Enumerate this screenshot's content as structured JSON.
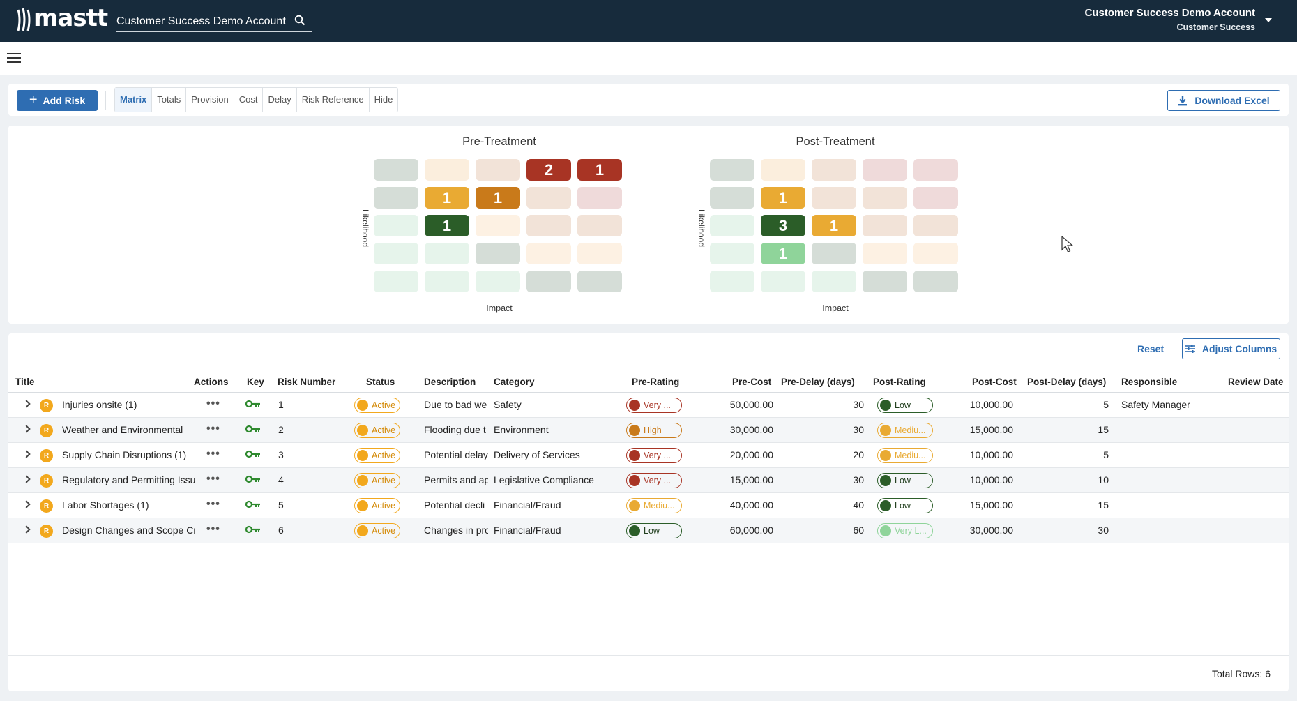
{
  "app": {
    "logo_text": "mastt",
    "account_search_value": "Customer Success Demo Account",
    "user_name": "Customer Success Demo Account",
    "user_role": "Customer Success"
  },
  "toolbar": {
    "add_label": "Add Risk",
    "tabs": [
      {
        "label": "Matrix",
        "active": true
      },
      {
        "label": "Totals",
        "active": false
      },
      {
        "label": "Provision",
        "active": false
      },
      {
        "label": "Cost",
        "active": false
      },
      {
        "label": "Delay",
        "active": false
      },
      {
        "label": "Risk Reference",
        "active": false
      },
      {
        "label": "Hide",
        "active": false
      }
    ],
    "download_label": "Download Excel"
  },
  "matrices": [
    {
      "title": "Pre-Treatment",
      "ylabel": "Likelihood",
      "xlabel": "Impact",
      "cells": [
        [
          {
            "c": "#d5ddd7",
            "v": ""
          },
          {
            "c": "#fbeedd",
            "v": ""
          },
          {
            "c": "#f2e3d8",
            "v": ""
          },
          {
            "c": "#a83424",
            "v": "2"
          },
          {
            "c": "#a83424",
            "v": "1"
          }
        ],
        [
          {
            "c": "#d5ddd7",
            "v": ""
          },
          {
            "c": "#e9aa33",
            "v": "1"
          },
          {
            "c": "#c97a1a",
            "v": "1"
          },
          {
            "c": "#f2e3d8",
            "v": ""
          },
          {
            "c": "#efdada",
            "v": ""
          }
        ],
        [
          {
            "c": "#e6f4eb",
            "v": ""
          },
          {
            "c": "#2b5d28",
            "v": "1"
          },
          {
            "c": "#fdf1e3",
            "v": ""
          },
          {
            "c": "#f2e3d8",
            "v": ""
          },
          {
            "c": "#f2e3d8",
            "v": ""
          }
        ],
        [
          {
            "c": "#e6f4eb",
            "v": ""
          },
          {
            "c": "#e6f4eb",
            "v": ""
          },
          {
            "c": "#d5ddd7",
            "v": ""
          },
          {
            "c": "#fdf1e3",
            "v": ""
          },
          {
            "c": "#fdf1e3",
            "v": ""
          }
        ],
        [
          {
            "c": "#e6f4eb",
            "v": ""
          },
          {
            "c": "#e6f4eb",
            "v": ""
          },
          {
            "c": "#e6f4eb",
            "v": ""
          },
          {
            "c": "#d5ddd7",
            "v": ""
          },
          {
            "c": "#d5ddd7",
            "v": ""
          }
        ]
      ]
    },
    {
      "title": "Post-Treatment",
      "ylabel": "Likelihood",
      "xlabel": "Impact",
      "cells": [
        [
          {
            "c": "#d5ddd7",
            "v": ""
          },
          {
            "c": "#fbeedd",
            "v": ""
          },
          {
            "c": "#f2e3d8",
            "v": ""
          },
          {
            "c": "#efdada",
            "v": ""
          },
          {
            "c": "#efdada",
            "v": ""
          }
        ],
        [
          {
            "c": "#d5ddd7",
            "v": ""
          },
          {
            "c": "#e9aa33",
            "v": "1"
          },
          {
            "c": "#f2e3d8",
            "v": ""
          },
          {
            "c": "#f2e3d8",
            "v": ""
          },
          {
            "c": "#efdada",
            "v": ""
          }
        ],
        [
          {
            "c": "#e6f4eb",
            "v": ""
          },
          {
            "c": "#2b5d28",
            "v": "3"
          },
          {
            "c": "#e9aa33",
            "v": "1"
          },
          {
            "c": "#f2e3d8",
            "v": ""
          },
          {
            "c": "#f2e3d8",
            "v": ""
          }
        ],
        [
          {
            "c": "#e6f4eb",
            "v": ""
          },
          {
            "c": "#8fd49a",
            "v": "1"
          },
          {
            "c": "#d5ddd7",
            "v": ""
          },
          {
            "c": "#fdf1e3",
            "v": ""
          },
          {
            "c": "#fdf1e3",
            "v": ""
          }
        ],
        [
          {
            "c": "#e6f4eb",
            "v": ""
          },
          {
            "c": "#e6f4eb",
            "v": ""
          },
          {
            "c": "#e6f4eb",
            "v": ""
          },
          {
            "c": "#d5ddd7",
            "v": ""
          },
          {
            "c": "#d5ddd7",
            "v": ""
          }
        ]
      ]
    }
  ],
  "table": {
    "reset_label": "Reset",
    "adjust_label": "Adjust Columns",
    "headers": {
      "title": "Title",
      "actions": "Actions",
      "key": "Key",
      "risk_number": "Risk Number",
      "status": "Status",
      "description": "Description",
      "category": "Category",
      "pre_rating": "Pre-Rating",
      "pre_cost": "Pre-Cost",
      "pre_delay": "Pre-Delay (days)",
      "post_rating": "Post-Rating",
      "post_cost": "Post-Cost",
      "post_delay": "Post-Delay (days)",
      "responsible": "Responsible",
      "review_date": "Review Date"
    },
    "rows": [
      {
        "badge": "R",
        "title": "Injuries onsite  (1)",
        "risk_number": "1",
        "status": "Active",
        "description": "Due to bad we",
        "category": "Safety",
        "pre_rating": "Very ...",
        "pre_color": "#a83424",
        "pre_cost": "50,000.00",
        "pre_delay": "30",
        "post_rating": "Low",
        "post_color": "#2b5d28",
        "post_cost": "10,000.00",
        "post_delay": "5",
        "responsible": "Safety Manager",
        "review_date": ""
      },
      {
        "badge": "R",
        "title": "Weather and Environmental",
        "risk_number": "2",
        "status": "Active",
        "description": "Flooding due t",
        "category": "Environment",
        "pre_rating": "High",
        "pre_color": "#c97a1a",
        "pre_cost": "30,000.00",
        "pre_delay": "30",
        "post_rating": "Mediu...",
        "post_color": "#e9aa33",
        "post_cost": "15,000.00",
        "post_delay": "15",
        "responsible": "",
        "review_date": ""
      },
      {
        "badge": "R",
        "title": "Supply Chain Disruptions  (1)",
        "risk_number": "3",
        "status": "Active",
        "description": "Potential delay",
        "category": "Delivery of Services",
        "pre_rating": "Very ...",
        "pre_color": "#a83424",
        "pre_cost": "20,000.00",
        "pre_delay": "20",
        "post_rating": "Mediu...",
        "post_color": "#e9aa33",
        "post_cost": "10,000.00",
        "post_delay": "5",
        "responsible": "",
        "review_date": ""
      },
      {
        "badge": "R",
        "title": "Regulatory and Permitting Issues",
        "risk_number": "4",
        "status": "Active",
        "description": "Permits and ap",
        "category": "Legislative Compliance",
        "pre_rating": "Very ...",
        "pre_color": "#a83424",
        "pre_cost": "15,000.00",
        "pre_delay": "30",
        "post_rating": "Low",
        "post_color": "#2b5d28",
        "post_cost": "10,000.00",
        "post_delay": "10",
        "responsible": "",
        "review_date": ""
      },
      {
        "badge": "R",
        "title": "Labor Shortages  (1)",
        "risk_number": "5",
        "status": "Active",
        "description": "Potential decli",
        "category": "Financial/Fraud",
        "pre_rating": "Mediu...",
        "pre_color": "#e9aa33",
        "pre_cost": "40,000.00",
        "pre_delay": "40",
        "post_rating": "Low",
        "post_color": "#2b5d28",
        "post_cost": "15,000.00",
        "post_delay": "15",
        "responsible": "",
        "review_date": ""
      },
      {
        "badge": "R",
        "title": "Design Changes and Scope Creep",
        "risk_number": "6",
        "status": "Active",
        "description": "Changes in pro",
        "category": "Financial/Fraud",
        "pre_rating": "Low",
        "pre_color": "#2b5d28",
        "pre_cost": "60,000.00",
        "pre_delay": "60",
        "post_rating": "Very L...",
        "post_color": "#8fd49a",
        "post_cost": "30,000.00",
        "post_delay": "30",
        "responsible": "",
        "review_date": ""
      }
    ],
    "total_rows": "Total Rows: 6"
  },
  "colors": {
    "accent": "#2e6db2",
    "topbar": "#172b3c",
    "status_active": "#f2a81d",
    "key_green": "#2f8a2f"
  },
  "icons": {
    "search": "search-icon",
    "menu": "hamburger-menu-icon",
    "plus": "plus-icon",
    "download": "download-icon",
    "adjust": "sliders-icon",
    "key": "key-icon",
    "more": "more-horizontal-icon",
    "expand": "chevron-right-icon"
  }
}
